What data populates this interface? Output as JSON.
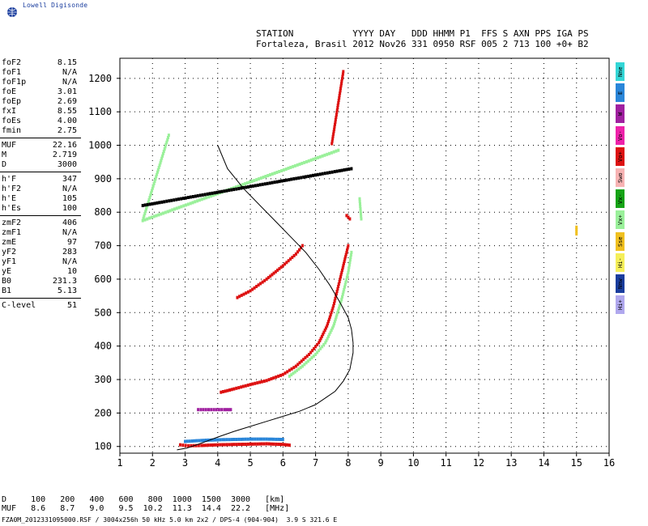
{
  "app": {
    "brand": "Lowell Digisonde"
  },
  "header": {
    "line1": "STATION           YYYY DAY   DDD HHMM P1  FFS S AXN PPS IGA PS",
    "line2": "Fortaleza, Brasil 2012 Nov26 331 0950 RSF 005 2 713 100 +0+ B2"
  },
  "params": [
    {
      "name": "foF2",
      "value": "8.15"
    },
    {
      "name": "foF1",
      "value": "N/A"
    },
    {
      "name": "foF1p",
      "value": "N/A"
    },
    {
      "name": "foE",
      "value": "3.01"
    },
    {
      "name": "foEp",
      "value": "2.69"
    },
    {
      "name": "fxI",
      "value": "8.55"
    },
    {
      "name": "foEs",
      "value": "4.00"
    },
    {
      "name": "fmin",
      "value": "2.75"
    },
    {
      "sep": true
    },
    {
      "name": "MUF",
      "value": "22.16"
    },
    {
      "name": "M",
      "value": "2.719"
    },
    {
      "name": "D",
      "value": "3000"
    },
    {
      "sep": true
    },
    {
      "name": "h'F",
      "value": "347"
    },
    {
      "name": "h'F2",
      "value": "N/A"
    },
    {
      "name": "h'E",
      "value": "105"
    },
    {
      "name": "h'Es",
      "value": "100"
    },
    {
      "sep": true
    },
    {
      "name": "zmF2",
      "value": "406"
    },
    {
      "name": "zmF1",
      "value": "N/A"
    },
    {
      "name": "zmE",
      "value": "97"
    },
    {
      "name": "yF2",
      "value": "283"
    },
    {
      "name": "yF1",
      "value": "N/A"
    },
    {
      "name": "yE",
      "value": "10"
    },
    {
      "name": "B0",
      "value": "231.3"
    },
    {
      "name": "B1",
      "value": "5.13"
    },
    {
      "sep": true
    },
    {
      "name": "C-level",
      "value": "51"
    }
  ],
  "legend": [
    {
      "label": "Nne",
      "color": "#33d6d6"
    },
    {
      "label": "E",
      "color": "#2a86d9"
    },
    {
      "label": "W",
      "color": "#a020a0"
    },
    {
      "label": "Vo-",
      "color": "#ee22aa"
    },
    {
      "label": "Vo+",
      "color": "#dd1111"
    },
    {
      "label": "Swo",
      "color": "#f7b3b3"
    },
    {
      "label": "Vx-",
      "color": "#16a316"
    },
    {
      "label": "Vx+",
      "color": "#9af09a"
    },
    {
      "label": "Sse",
      "color": "#f0c020"
    },
    {
      "label": "Hi-",
      "color": "#f5ef5a"
    },
    {
      "label": "Nnw",
      "color": "#1a3d9e"
    },
    {
      "label": "Hi+",
      "color": "#b0a8ee"
    }
  ],
  "bottom_table": {
    "line1": "D     100   200   400   600   800  1000  1500  3000   [km]",
    "line2": "MUF   8.6   8.7   9.0   9.5  10.2  11.3  14.4  22.2   [MHz]"
  },
  "footer": "FZA0M_2012331095000.RSF / 3004x256h 50 kHz 5.0 km 2x2 / DPS-4 (904-904)  3.9 S 321.6 E",
  "chart_data": {
    "type": "scatter",
    "x_ticks": [
      "1",
      "2",
      "3",
      "4",
      "5",
      "6",
      "7",
      "8",
      "9",
      "10",
      "11",
      "12",
      "13",
      "14",
      "15",
      "16"
    ],
    "y_ticks": [
      "100",
      "200",
      "300",
      "400",
      "500",
      "600",
      "700",
      "800",
      "900",
      "1000",
      "1100",
      "1200"
    ],
    "xlim": [
      1,
      16
    ],
    "ylim": [
      80,
      1260
    ],
    "grid": true,
    "profile": {
      "color": "#000000",
      "x": [
        2.75,
        3.05,
        3.5,
        4.0,
        4.5,
        5.0,
        5.5,
        6.0,
        6.5,
        7.0,
        7.3,
        7.6,
        7.85,
        8.05,
        8.15,
        8.15,
        8.1,
        8.0,
        7.75,
        7.45,
        7.1,
        6.7,
        6.3,
        5.8,
        5.3,
        4.8,
        4.3,
        4.0
      ],
      "y": [
        90,
        95,
        110,
        128,
        145,
        160,
        175,
        190,
        205,
        225,
        245,
        265,
        295,
        330,
        380,
        410,
        450,
        485,
        530,
        580,
        630,
        680,
        720,
        770,
        820,
        870,
        930,
        1000
      ]
    },
    "traces": [
      {
        "name": "o",
        "color": "#dd1111",
        "x": [
          4.1,
          4.5,
          5.0,
          5.5,
          6.0,
          6.4,
          6.8,
          7.1,
          7.35,
          7.55,
          7.75,
          7.9,
          8.0
        ],
        "y": [
          262,
          272,
          285,
          297,
          315,
          340,
          375,
          410,
          460,
          520,
          600,
          660,
          700
        ]
      },
      {
        "name": "o",
        "color": "#dd1111",
        "x": [
          4.6,
          5.0,
          5.5,
          6.0,
          6.4,
          6.6
        ],
        "y": [
          545,
          565,
          600,
          640,
          675,
          700
        ]
      },
      {
        "name": "x",
        "color": "#9af09a",
        "x": [
          6.2,
          6.6,
          7.0,
          7.3,
          7.55,
          7.8,
          8.0,
          8.1
        ],
        "y": [
          310,
          340,
          375,
          410,
          460,
          540,
          620,
          680
        ]
      },
      {
        "name": "o",
        "color": "#dd1111",
        "x": [
          2.85,
          3.1,
          3.5,
          4.0,
          4.5,
          5.0,
          5.5,
          6.0,
          6.2
        ],
        "y": [
          105,
          102,
          103,
          105,
          106,
          107,
          108,
          106,
          104
        ]
      },
      {
        "name": "x",
        "color": "#2a86d9",
        "x": [
          3.0,
          3.5,
          4.0,
          4.5,
          5.0,
          5.5,
          6.0
        ],
        "y": [
          115,
          118,
          120,
          121,
          122,
          122,
          121
        ]
      },
      {
        "name": "o",
        "color": "#a020a0",
        "x": [
          3.4,
          3.8,
          4.2,
          4.4
        ],
        "y": [
          210,
          210,
          210,
          210
        ]
      },
      {
        "name": "o",
        "color": "#dd1111",
        "x": [
          7.95,
          8.05
        ],
        "y": [
          790,
          780
        ]
      },
      {
        "name": "x",
        "color": "#9af09a",
        "x": [
          8.35,
          8.4
        ],
        "y": [
          840,
          780
        ]
      },
      {
        "name": "o",
        "color": "#dd1111",
        "x": [
          7.5,
          7.85
        ],
        "y": [
          1005,
          1220
        ]
      },
      {
        "name": "x",
        "color": "#9af09a",
        "x": [
          2.5,
          1.7,
          7.7
        ],
        "y": [
          1030,
          775,
          985
        ]
      },
      {
        "name": "o",
        "color": "#000000",
        "x": [
          1.7,
          8.1
        ],
        "y": [
          820,
          930
        ]
      },
      {
        "name": "x",
        "color": "#f0c020",
        "x": [
          15.0,
          15.0
        ],
        "y": [
          755,
          735
        ]
      }
    ]
  }
}
